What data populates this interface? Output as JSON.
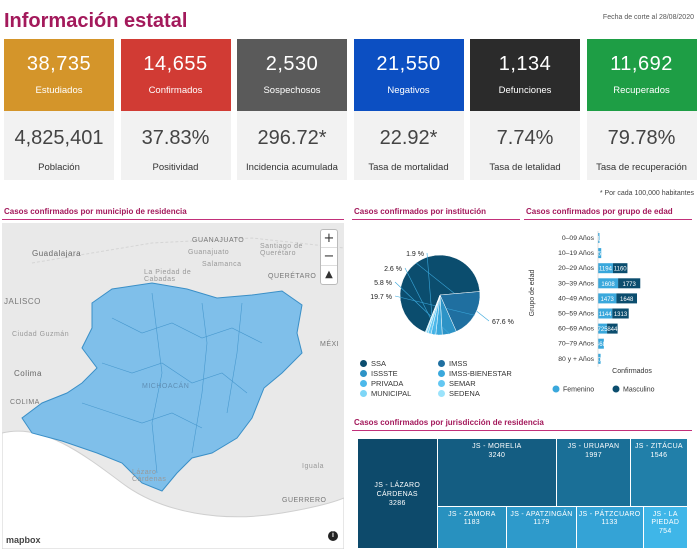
{
  "header": {
    "title": "Información estatal",
    "cutoff": "Fecha de corte al 28/08/2020"
  },
  "cards": [
    {
      "value": "38,735",
      "label": "Estudiados",
      "color": "#d4952a",
      "sub_value": "4,825,401",
      "sub_label": "Población"
    },
    {
      "value": "14,655",
      "label": "Confirmados",
      "color": "#d13b34",
      "sub_value": "37.83%",
      "sub_label": "Positividad"
    },
    {
      "value": "2,530",
      "label": "Sospechosos",
      "color": "#5a5a5a",
      "sub_value": "296.72*",
      "sub_label": "Incidencia acumulada"
    },
    {
      "value": "21,550",
      "label": "Negativos",
      "color": "#0c4fc2",
      "sub_value": "22.92*",
      "sub_label": "Tasa de mortalidad"
    },
    {
      "value": "1,134",
      "label": "Defunciones",
      "color": "#2b2b2b",
      "sub_value": "7.74%",
      "sub_label": "Tasa de letalidad"
    },
    {
      "value": "11,692",
      "label": "Recuperados",
      "color": "#1e9e45",
      "sub_value": "79.78%",
      "sub_label": "Tasa de recuperación"
    }
  ],
  "footnote": "* Por cada 100,000 habitantes",
  "map": {
    "title": "Casos confirmados por municipio de residencia",
    "attribution": "mapbox",
    "zoom_in": "+",
    "zoom_out": "−",
    "compass": "▲",
    "labels": [
      "GUANAJUATO",
      "Guanajuato",
      "Santiago de Querétaro",
      "Guadalajara",
      "Salamanca",
      "QUERÉTARO",
      "La Piedad de Cabadas",
      "JALISCO",
      "Ciudad Guzmán",
      "Colima",
      "COLIMA",
      "MICHOACÁN",
      "Lázaro Cárdenas",
      "GUERRERO",
      "Iguala",
      "MÉXI"
    ]
  },
  "institution_chart": {
    "title": "Casos confirmados por institución",
    "chart_data": {
      "type": "pie",
      "slices": [
        {
          "name": "SSA",
          "value": 67.6,
          "label": "67.6 %",
          "color": "#0b4d6e"
        },
        {
          "name": "IMSS",
          "value": 19.7,
          "label": "19.7 %",
          "color": "#1f6fa0"
        },
        {
          "name": "ISSSTE",
          "value": 5.8,
          "label": "5.8 %",
          "color": "#2d93c6"
        },
        {
          "name": "IMSS-BIENESTAR",
          "value": 2.6,
          "label": "2.6 %",
          "color": "#3aa8dc"
        },
        {
          "name": "PRIVADA",
          "value": 1.9,
          "label": "1.9 %",
          "color": "#4cb8ea"
        },
        {
          "name": "SEMAR",
          "value": 1.2,
          "label": "",
          "color": "#63c7f2"
        },
        {
          "name": "MUNICIPAL",
          "value": 0.8,
          "label": "",
          "color": "#7ed6f7"
        },
        {
          "name": "SEDENA",
          "value": 0.4,
          "label": "",
          "color": "#9be3fb"
        }
      ],
      "legend_order": [
        "SSA",
        "IMSS",
        "ISSSTE",
        "IMSS-BIENESTAR",
        "PRIVADA",
        "SEMAR",
        "MUNICIPAL",
        "SEDENA"
      ]
    }
  },
  "age_chart": {
    "title": "Casos confirmados por grupo de edad",
    "chart_data": {
      "type": "bar",
      "orientation": "horizontal",
      "categories": [
        "0–09 Años",
        "10–19 Años",
        "20–29 Años",
        "30–39 Años",
        "40–49 Años",
        "50–59 Años",
        "60–69 Años",
        "70–79 Años",
        "80 y + Años"
      ],
      "series": [
        {
          "name": "Femenino",
          "color": "#3aa8dc",
          "values": [
            117,
            258,
            1194,
            1608,
            1473,
            1144,
            725,
            468,
            207
          ]
        },
        {
          "name": "Masculino",
          "color": "#0b4d6e",
          "values": [
            0,
            0,
            1160,
            1773,
            1648,
            1313,
            844,
            0,
            0
          ]
        }
      ],
      "labels_f": [
        "117",
        "258",
        "1194",
        "1608",
        "1473",
        "1144",
        "725",
        "468",
        "207"
      ],
      "labels_m": [
        "",
        "",
        "1160",
        "1773",
        "1648",
        "1313",
        "844",
        "",
        ""
      ],
      "ylabel": "Grupo de edad",
      "xlabel": "Confirmados",
      "xlim": [
        0,
        4000
      ]
    }
  },
  "jurisdiction_chart": {
    "title": "Casos confirmados por jurisdicción de residencia",
    "chart_data": {
      "type": "treemap",
      "items": [
        {
          "name": "JS - LÁZARO CÁRDENAS",
          "value": 3286,
          "color": "#0d4a6b"
        },
        {
          "name": "JS - MORELIA",
          "value": 3240,
          "color": "#145d82"
        },
        {
          "name": "JS - URUAPAN",
          "value": 1997,
          "color": "#1a6f97"
        },
        {
          "name": "JS - ZITÁCUA",
          "value": 1546,
          "color": "#217fa9"
        },
        {
          "name": "JS - ZAMORA",
          "value": 1183,
          "color": "#2891bf"
        },
        {
          "name": "JS - APATZINGÁN",
          "value": 1179,
          "color": "#2e9acb"
        },
        {
          "name": "JS - PÁTZCUARO",
          "value": 1133,
          "color": "#34a3d6"
        },
        {
          "name": "JS - LA PIEDAD",
          "value": 754,
          "color": "#3fb6e8"
        }
      ]
    }
  }
}
